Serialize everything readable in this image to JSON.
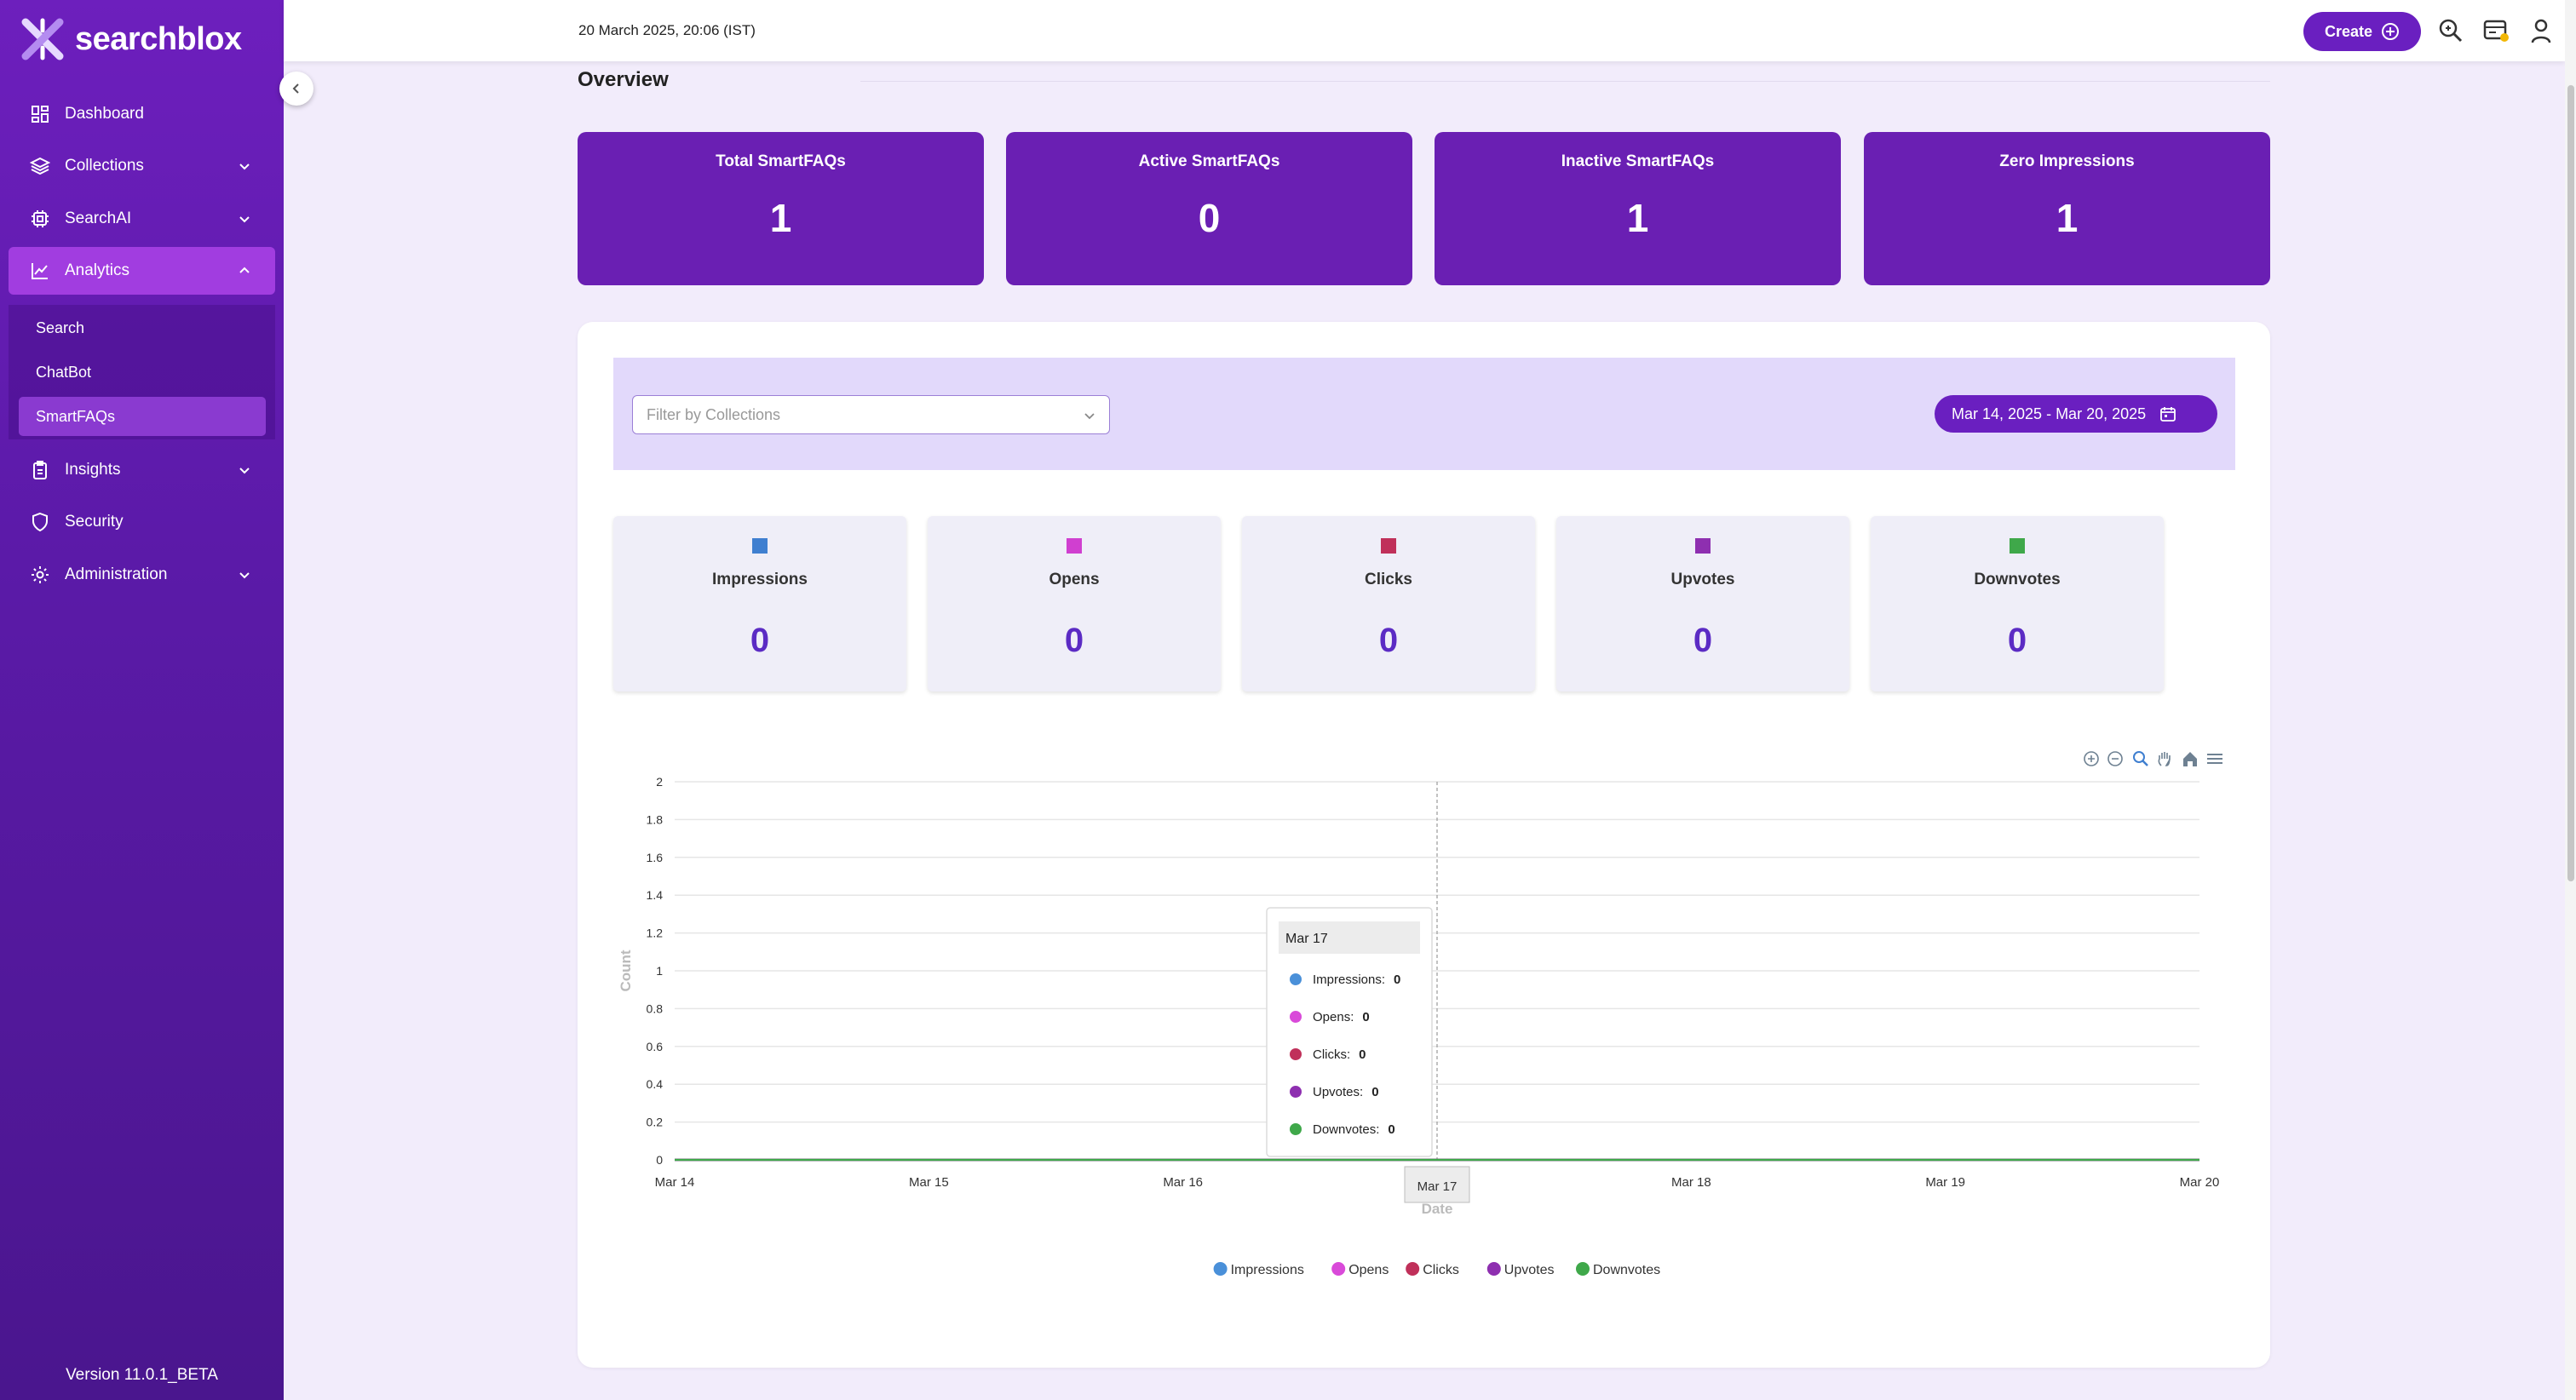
{
  "app": {
    "name": "searchblox",
    "version": "Version 11.0.1_BETA"
  },
  "header": {
    "datetime": "20 March 2025, 20:06 (IST)",
    "create_label": "Create"
  },
  "sidebar": {
    "items": [
      {
        "label": "Dashboard",
        "icon": "dashboard-icon"
      },
      {
        "label": "Collections",
        "icon": "layers-icon"
      },
      {
        "label": "SearchAI",
        "icon": "ai-chip-icon"
      },
      {
        "label": "Analytics",
        "icon": "chart-icon"
      },
      {
        "label": "Insights",
        "icon": "clipboard-icon"
      },
      {
        "label": "Security",
        "icon": "shield-icon"
      },
      {
        "label": "Administration",
        "icon": "gear-icon"
      }
    ],
    "analytics_sub": [
      {
        "label": "Search"
      },
      {
        "label": "ChatBot"
      },
      {
        "label": "SmartFAQs"
      }
    ]
  },
  "overview": {
    "title": "Overview",
    "cards": [
      {
        "label": "Total SmartFAQs",
        "value": "1"
      },
      {
        "label": "Active SmartFAQs",
        "value": "0"
      },
      {
        "label": "Inactive SmartFAQs",
        "value": "1"
      },
      {
        "label": "Zero Impressions",
        "value": "1"
      }
    ]
  },
  "filters": {
    "collections_placeholder": "Filter by Collections",
    "date_range": "Mar 14, 2025 - Mar 20, 2025"
  },
  "metrics": [
    {
      "label": "Impressions",
      "value": "0",
      "color": "#3f7fd0"
    },
    {
      "label": "Opens",
      "value": "0",
      "color": "#d03fd0"
    },
    {
      "label": "Clicks",
      "value": "0",
      "color": "#c0305a"
    },
    {
      "label": "Upvotes",
      "value": "0",
      "color": "#8e2fb0"
    },
    {
      "label": "Downvotes",
      "value": "0",
      "color": "#3fa84a"
    }
  ],
  "chart_data": {
    "type": "line",
    "x": [
      "Mar 14",
      "Mar 15",
      "Mar 16",
      "Mar 17",
      "Mar 18",
      "Mar 19",
      "Mar 20"
    ],
    "series": [
      {
        "name": "Impressions",
        "values": [
          0,
          0,
          0,
          0,
          0,
          0,
          0
        ],
        "color": "#4a90d9"
      },
      {
        "name": "Opens",
        "values": [
          0,
          0,
          0,
          0,
          0,
          0,
          0
        ],
        "color": "#d94ad9"
      },
      {
        "name": "Clicks",
        "values": [
          0,
          0,
          0,
          0,
          0,
          0,
          0
        ],
        "color": "#c0305a"
      },
      {
        "name": "Upvotes",
        "values": [
          0,
          0,
          0,
          0,
          0,
          0,
          0
        ],
        "color": "#8e2fb0"
      },
      {
        "name": "Downvotes",
        "values": [
          0,
          0,
          0,
          0,
          0,
          0,
          0
        ],
        "color": "#3fa84a"
      }
    ],
    "yticks": [
      "0",
      "0.2",
      "0.4",
      "0.6",
      "0.8",
      "1",
      "1.2",
      "1.4",
      "1.6",
      "1.8",
      "2"
    ],
    "ylim": [
      0,
      2
    ],
    "xlabel": "Date",
    "ylabel": "Count",
    "grid": true,
    "legend": "bottom",
    "tooltip": {
      "title": "Mar 17",
      "rows": [
        {
          "label": "Impressions:",
          "value": "0"
        },
        {
          "label": "Opens:",
          "value": "0"
        },
        {
          "label": "Clicks:",
          "value": "0"
        },
        {
          "label": "Upvotes:",
          "value": "0"
        },
        {
          "label": "Downvotes:",
          "value": "0"
        }
      ]
    }
  }
}
